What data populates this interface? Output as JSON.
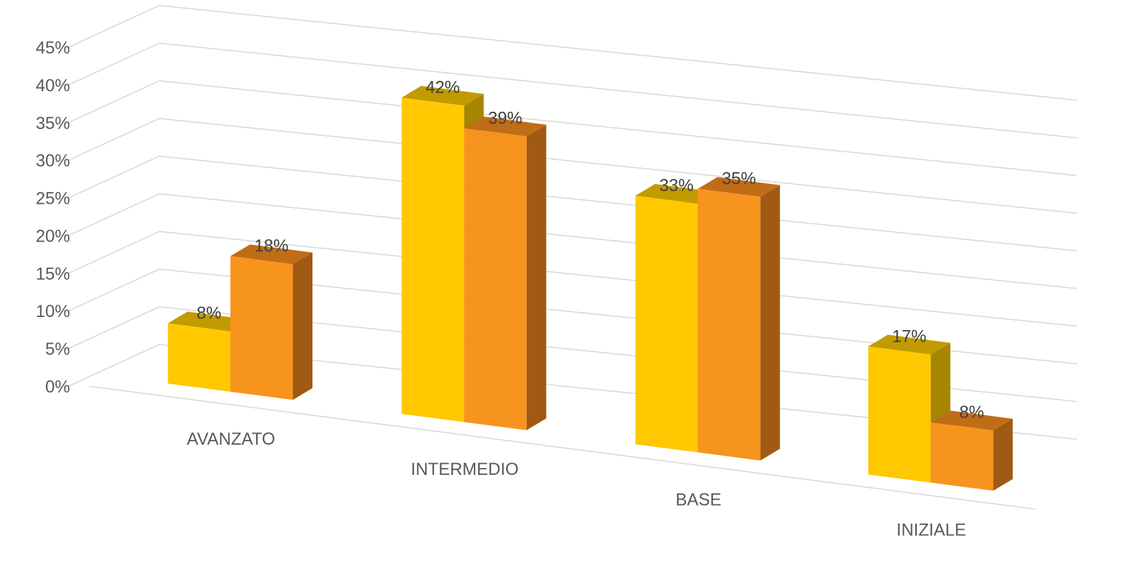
{
  "chart_data": {
    "type": "bar",
    "title": "",
    "xlabel": "",
    "ylabel": "",
    "categories": [
      "AVANZATO",
      "INTERMEDIO",
      "BASE",
      "INIZIALE"
    ],
    "y_ticks": [
      "0%",
      "5%",
      "10%",
      "15%",
      "20%",
      "25%",
      "30%",
      "35%",
      "40%",
      "45%"
    ],
    "ylim": [
      0,
      45
    ],
    "grid": true,
    "legend": "none",
    "series": [
      {
        "values": [
          8,
          42,
          33,
          17
        ],
        "labels": [
          "8%",
          "42%",
          "33%",
          "17%"
        ],
        "color": "#ffc800",
        "side_color": "#a68600",
        "top_color": "#c29b00"
      },
      {
        "values": [
          18,
          39,
          35,
          8
        ],
        "labels": [
          "18%",
          "39%",
          "35%",
          "8%"
        ],
        "color": "#f7941d",
        "side_color": "#a05a13",
        "top_color": "#c06d17"
      }
    ]
  }
}
